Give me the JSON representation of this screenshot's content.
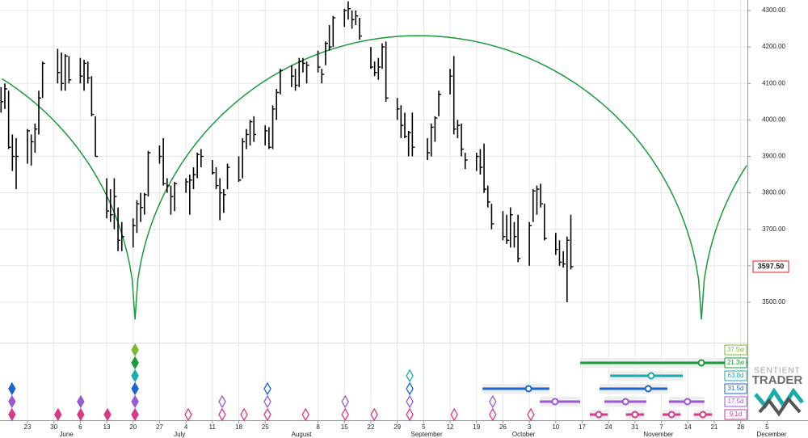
{
  "chart_data": {
    "type": "ohlc",
    "xlim": [
      -7.28,
      206.85
    ],
    "ylim": [
      3398.1,
      4328.8
    ],
    "grid": true,
    "yticks": [
      {
        "value": 3500,
        "label": "3500.00"
      },
      {
        "value": 3600,
        "label": "3600.00"
      },
      {
        "value": 3700,
        "label": "3700.00"
      },
      {
        "value": 3800,
        "label": "3800.00"
      },
      {
        "value": 3900,
        "label": "3900.00"
      },
      {
        "value": 4000,
        "label": "4000.00"
      },
      {
        "value": 4100,
        "label": "4100.00"
      },
      {
        "value": 4200,
        "label": "4200.00"
      },
      {
        "value": 4300,
        "label": "4300.00"
      }
    ],
    "xticks": [
      {
        "value": 0,
        "label": "23"
      },
      {
        "value": 7,
        "label": "30"
      },
      {
        "value": 14,
        "label": "6"
      },
      {
        "value": 21,
        "label": "13"
      },
      {
        "value": 28,
        "label": "20"
      },
      {
        "value": 35,
        "label": "27"
      },
      {
        "value": 42,
        "label": "4"
      },
      {
        "value": 49,
        "label": "11"
      },
      {
        "value": 56,
        "label": "18"
      },
      {
        "value": 63,
        "label": "25"
      },
      {
        "value": 77,
        "label": "8"
      },
      {
        "value": 84,
        "label": "15"
      },
      {
        "value": 91,
        "label": "22"
      },
      {
        "value": 98,
        "label": "29"
      },
      {
        "value": 105,
        "label": "5"
      },
      {
        "value": 112,
        "label": "12"
      },
      {
        "value": 119,
        "label": "19"
      },
      {
        "value": 126,
        "label": "26"
      },
      {
        "value": 133,
        "label": "3"
      },
      {
        "value": 140,
        "label": "10"
      },
      {
        "value": 147,
        "label": "17"
      },
      {
        "value": 154,
        "label": "24"
      },
      {
        "value": 161,
        "label": "31"
      },
      {
        "value": 168,
        "label": "7"
      },
      {
        "value": 175,
        "label": "14"
      },
      {
        "value": 182,
        "label": "21"
      },
      {
        "value": 189,
        "label": "28"
      },
      {
        "value": 196,
        "label": "5"
      }
    ],
    "month_labels": [
      {
        "value": 10.3,
        "label": "June"
      },
      {
        "value": 40.3,
        "label": "July"
      },
      {
        "value": 72.6,
        "label": "August"
      },
      {
        "value": 105.8,
        "label": "September"
      },
      {
        "value": 131.5,
        "label": "October"
      },
      {
        "value": 167.2,
        "label": "November"
      },
      {
        "value": 197.2,
        "label": "December"
      }
    ],
    "x": [
      -7,
      -6,
      -5,
      -4,
      -3,
      0,
      1,
      2,
      3,
      4,
      8,
      9,
      10,
      11,
      14,
      15,
      16,
      17,
      18,
      21,
      22,
      23,
      24,
      25,
      28,
      29,
      30,
      31,
      32,
      35,
      36,
      37,
      38,
      39,
      42,
      43,
      44,
      45,
      46,
      49,
      50,
      51,
      52,
      53,
      56,
      57,
      58,
      59,
      60,
      63,
      64,
      65,
      66,
      67,
      70,
      71,
      72,
      73,
      74,
      77,
      78,
      79,
      80,
      81,
      84,
      85,
      86,
      87,
      88,
      91,
      92,
      93,
      94,
      95,
      98,
      99,
      100,
      101,
      102,
      106,
      107,
      108,
      109,
      112,
      113,
      114,
      115,
      116,
      119,
      120,
      121,
      122,
      123,
      126,
      127,
      128,
      129,
      130,
      133,
      134,
      135,
      136,
      137,
      140,
      141,
      142,
      143,
      144
    ],
    "high": [
      4090,
      4100,
      4080,
      3960,
      3950,
      3975,
      3960,
      3990,
      4080,
      4160,
      4195,
      4185,
      4180,
      4175,
      4170,
      4165,
      4160,
      4120,
      4010,
      3840,
      3810,
      3840,
      3760,
      3720,
      3730,
      3780,
      3800,
      3800,
      3915,
      3930,
      3950,
      3840,
      3820,
      3830,
      3840,
      3850,
      3870,
      3910,
      3920,
      3890,
      3870,
      3840,
      3810,
      3880,
      3900,
      3950,
      3975,
      4000,
      4010,
      3985,
      3980,
      4040,
      4085,
      4140,
      4150,
      4140,
      4170,
      4170,
      4160,
      4190,
      4140,
      4215,
      4260,
      4285,
      4305,
      4325,
      4300,
      4300,
      4280,
      4200,
      4160,
      4170,
      4210,
      4215,
      4060,
      4040,
      4020,
      3970,
      4020,
      3950,
      3990,
      4010,
      4080,
      4140,
      4175,
      4000,
      3990,
      3910,
      3910,
      3920,
      3935,
      3820,
      3770,
      3750,
      3740,
      3760,
      3720,
      3740,
      3720,
      3810,
      3820,
      3825,
      3770,
      3690,
      3670,
      3640,
      3680,
      3740
    ],
    "low": [
      4020,
      4030,
      3920,
      3860,
      3810,
      3880,
      3875,
      3910,
      3960,
      4060,
      4100,
      4080,
      4080,
      4100,
      4100,
      4080,
      4100,
      4010,
      3900,
      3730,
      3720,
      3700,
      3640,
      3640,
      3650,
      3690,
      3720,
      3740,
      3790,
      3880,
      3820,
      3800,
      3740,
      3750,
      3800,
      3740,
      3810,
      3840,
      3870,
      3850,
      3810,
      3725,
      3745,
      3810,
      3830,
      3840,
      3920,
      3930,
      3940,
      3930,
      3920,
      3920,
      4000,
      4070,
      4090,
      4080,
      4090,
      4130,
      4100,
      4130,
      4100,
      4150,
      4190,
      4200,
      4255,
      4275,
      4250,
      4260,
      4220,
      4140,
      4120,
      4110,
      4140,
      4050,
      4000,
      3950,
      3950,
      3900,
      3900,
      3890,
      3900,
      3940,
      4010,
      4070,
      3960,
      3950,
      3900,
      3865,
      3860,
      3850,
      3800,
      3760,
      3700,
      3670,
      3660,
      3650,
      3650,
      3610,
      3600,
      3720,
      3740,
      3760,
      3670,
      3630,
      3600,
      3595,
      3500,
      3590
    ],
    "close": [
      4050,
      4085,
      3925,
      3900,
      3900,
      3970,
      3940,
      3975,
      4060,
      4155,
      4130,
      4100,
      4175,
      4110,
      4120,
      4155,
      4115,
      4015,
      3900,
      3750,
      3740,
      3790,
      3670,
      3680,
      3710,
      3770,
      3760,
      3795,
      3910,
      3900,
      3825,
      3820,
      3790,
      3825,
      3830,
      3835,
      3850,
      3905,
      3900,
      3855,
      3820,
      3800,
      3795,
      3870,
      3835,
      3940,
      3960,
      3995,
      3960,
      3970,
      3925,
      4030,
      4075,
      4135,
      4120,
      4095,
      4160,
      4155,
      4150,
      4145,
      4125,
      4210,
      4200,
      4280,
      4300,
      4305,
      4275,
      4285,
      4230,
      4145,
      4130,
      4145,
      4200,
      4060,
      4030,
      3985,
      3955,
      3965,
      3925,
      3910,
      3980,
      4005,
      4070,
      4120,
      3975,
      3985,
      3920,
      3890,
      3900,
      3870,
      3810,
      3775,
      3715,
      3680,
      3670,
      3740,
      3680,
      3620,
      3710,
      3805,
      3810,
      3770,
      3675,
      3645,
      3610,
      3605,
      3670,
      3597.5
    ],
    "color": "#000000",
    "last_price": {
      "value": 3597.5,
      "label": "3597.50",
      "color": "#d62020"
    },
    "cycle_arc": {
      "color": "#1a9a3a",
      "troughs": [
        -121.5,
        28.5,
        178.6
      ],
      "low": 3453,
      "high": 4231
    },
    "cycles": [
      {
        "name": "37.5w",
        "color": "#7ab830",
        "confirmed": [
          28.5
        ],
        "projected": [],
        "future": []
      },
      {
        "name": "21.3w",
        "color": "#1a9a3a",
        "confirmed": [
          28.5
        ],
        "projected": [],
        "future": [
          {
            "center": 178.6,
            "start": 146.5,
            "end": 190.8
          }
        ]
      },
      {
        "name": "63.8d",
        "color": "#1aabab",
        "confirmed": [
          28.5
        ],
        "projected": [
          101.3
        ],
        "future": [
          {
            "center": 165.3,
            "start": 154.4,
            "end": 173.7
          }
        ]
      },
      {
        "name": "31.5d",
        "color": "#1a66d0",
        "confirmed": [
          -4.1,
          28.5
        ],
        "projected": [
          63.6,
          101.3
        ],
        "future": [
          {
            "center": 132.8,
            "start": 120.6,
            "end": 138.3
          },
          {
            "center": 164.5,
            "start": 151.6,
            "end": 169.6
          }
        ]
      },
      {
        "name": "17.5d",
        "color": "#9a5ad6",
        "confirmed": [
          -4.1,
          14.1,
          28.5
        ],
        "projected": [
          51.6,
          63.6,
          84.2,
          101.3,
          123.3
        ],
        "future": [
          {
            "center": 139.8,
            "start": 135.8,
            "end": 146.5
          },
          {
            "center": 158.5,
            "start": 152.9,
            "end": 164
          },
          {
            "center": 174.9,
            "start": 170,
            "end": 179.4
          }
        ]
      },
      {
        "name": "9.1d",
        "color": "#d63a8a",
        "confirmed": [
          -4.1,
          8.1,
          14.1,
          21.2,
          28.5
        ],
        "projected": [
          42.6,
          51.6,
          57.4,
          63.6,
          73.7,
          84.2,
          91.9,
          101.3,
          113.1,
          123.3,
          133.4
        ],
        "future": [
          {
            "center": 151.4,
            "start": 149,
            "end": 153.8
          },
          {
            "center": 161,
            "start": 158.6,
            "end": 163.4
          },
          {
            "center": 170.7,
            "start": 168.3,
            "end": 173.1
          },
          {
            "center": 179,
            "start": 176.6,
            "end": 181.4
          }
        ]
      }
    ]
  },
  "logo": {
    "line1": "SENTIENT",
    "line2": "TRADER"
  }
}
